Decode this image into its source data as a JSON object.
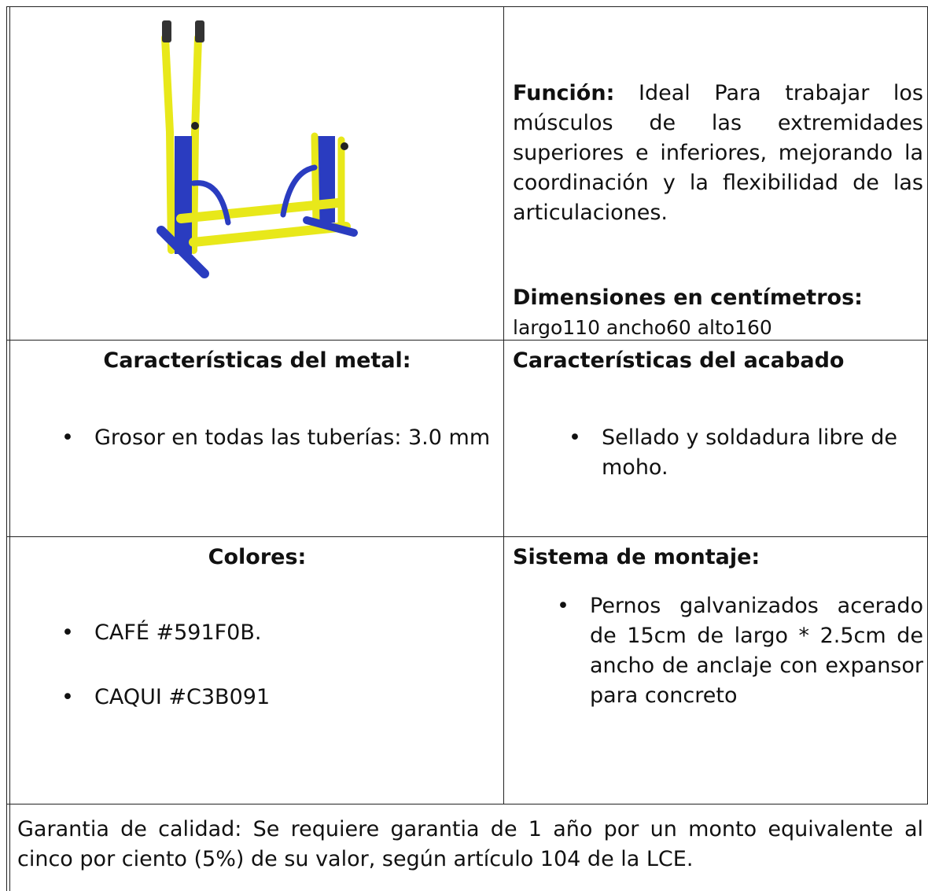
{
  "product": {
    "function_label": "Función:",
    "function_text": "Ideal Para trabajar los músculos de las extremidades superiores e inferiores, mejorando la coordinación y la flexibilidad de las articulaciones.",
    "dimensions_label": "Dimensiones en centímetros:",
    "dimensions_text": "largo110 ancho60 alto160"
  },
  "metal": {
    "title": "Características del metal:",
    "items": [
      "Grosor en todas las tuberías: 3.0 mm"
    ]
  },
  "finish": {
    "title": "Características del acabado",
    "items": [
      "Sellado y soldadura libre de moho."
    ]
  },
  "colors": {
    "title": "Colores:",
    "items": [
      "CAFÉ #591F0B.",
      "CAQUI #C3B091"
    ]
  },
  "mounting": {
    "title": "Sistema de montaje:",
    "items": [
      "Pernos galvanizados acerado de 15cm de largo * 2.5cm de ancho de anclaje con expansor para concreto"
    ]
  },
  "warranty": "Garantia de calidad: Se requiere garantia de 1 año por un monto equivalente al cinco por ciento (5%) de su valor, según artículo 104 de la LCE."
}
